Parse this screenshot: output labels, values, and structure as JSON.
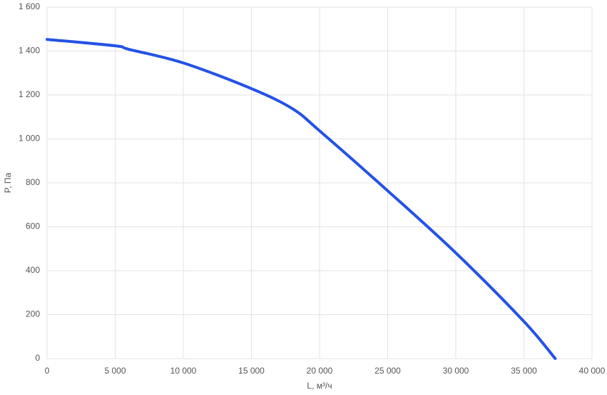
{
  "chart_data": {
    "type": "line",
    "x_label": "L, м³/ч",
    "y_label": "P, Па",
    "x": [
      0,
      5000,
      6000,
      10000,
      15000,
      18000,
      20000,
      25000,
      30000,
      35000,
      37300
    ],
    "series": [
      {
        "name": "P",
        "color": "#2352e6",
        "values": [
          1453,
          1424,
          1408,
          1346,
          1229,
          1138,
          1037,
          764,
          481,
          169,
          0
        ]
      }
    ],
    "xlim": [
      0,
      40000
    ],
    "xticks": [
      0,
      {
        "value": 5000,
        "label": "5 000"
      },
      {
        "value": 10000,
        "label": "10 000"
      },
      {
        "value": 15000,
        "label": "15 000"
      },
      {
        "value": 20000,
        "label": "20 000"
      },
      {
        "value": 25000,
        "label": "25 000"
      },
      {
        "value": 30000,
        "label": "30 000"
      },
      {
        "value": 35000,
        "label": "35 000"
      },
      {
        "value": 40000,
        "label": "40 000"
      }
    ],
    "ylim": [
      0,
      1600
    ],
    "yticks": [
      0,
      200,
      400,
      600,
      800,
      {
        "value": 1000,
        "label": "1 000"
      },
      {
        "value": 1200,
        "label": "1 200"
      },
      {
        "value": 1400,
        "label": "1 400"
      },
      {
        "value": 1600,
        "label": "1 600"
      }
    ],
    "grid": true
  }
}
